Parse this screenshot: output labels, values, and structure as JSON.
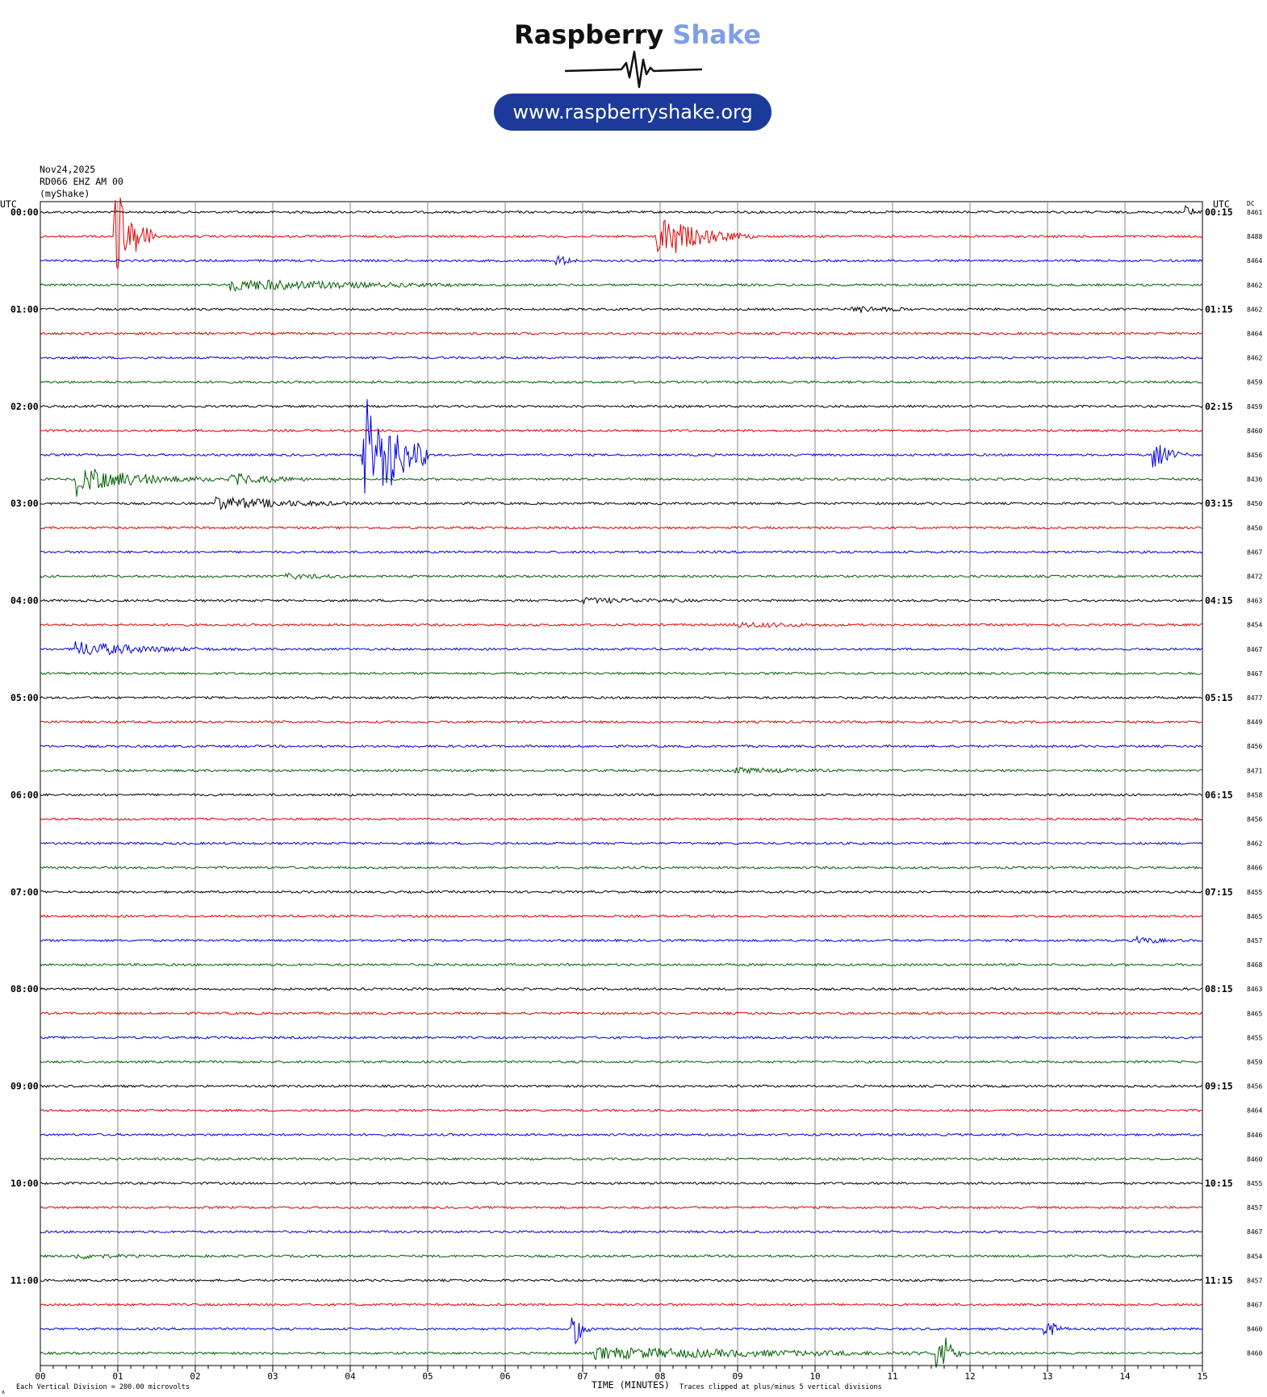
{
  "logo": {
    "brand_main": "Raspberry",
    "brand_accent": "Shake",
    "url": "www.raspberryshake.org",
    "color_brand_dark": "#111111",
    "color_brand_accent": "#7f9ee8",
    "color_url_pill": "#1b3a9a"
  },
  "header": {
    "date": "Nov24,2025",
    "station": "RD066 EHZ AM 00",
    "network": "(myShake)",
    "utc_left": "UTC",
    "utc_right": "UTC",
    "dc_label": "DC"
  },
  "footer": {
    "division_note": "Each Vertical Division =  200.00 microvolts",
    "time_label": "TIME (MINUTES)",
    "clip_note": "Traces clipped at plus/minus 5 vertical divisions",
    "corner_mark": "∧"
  },
  "chart_data": {
    "type": "line",
    "title": "",
    "xlabel": "TIME (MINUTES)",
    "ylabel": "",
    "xlim": [
      0,
      15
    ],
    "x_ticks": [
      "00",
      "01",
      "02",
      "03",
      "04",
      "05",
      "06",
      "07",
      "08",
      "09",
      "10",
      "11",
      "12",
      "13",
      "14",
      "15"
    ],
    "grid": true,
    "trace_colors": [
      "#000000",
      "#e00000",
      "#0000e0",
      "#006000"
    ],
    "rows": [
      {
        "left": "00:00",
        "right": "00:15",
        "dc": "8461",
        "events": [
          {
            "t": 14.8,
            "amp": 10,
            "dur": 0.2
          }
        ]
      },
      {
        "left": "",
        "right": "",
        "dc": "8488",
        "events": [
          {
            "t": 1.0,
            "amp": 55,
            "dur": 0.5
          },
          {
            "t": 8.0,
            "amp": 25,
            "dur": 1.2
          }
        ]
      },
      {
        "left": "",
        "right": "",
        "dc": "8464",
        "events": [
          {
            "t": 6.7,
            "amp": 8,
            "dur": 0.3
          }
        ]
      },
      {
        "left": "",
        "right": "",
        "dc": "8462",
        "events": [
          {
            "t": 2.5,
            "amp": 8,
            "dur": 4.5
          }
        ]
      },
      {
        "left": "01:00",
        "right": "01:15",
        "dc": "8462",
        "events": [
          {
            "t": 10.5,
            "amp": 5,
            "dur": 1.5
          }
        ]
      },
      {
        "left": "",
        "right": "",
        "dc": "8464",
        "events": []
      },
      {
        "left": "",
        "right": "",
        "dc": "8462",
        "events": []
      },
      {
        "left": "",
        "right": "",
        "dc": "8459",
        "events": []
      },
      {
        "left": "02:00",
        "right": "02:15",
        "dc": "8459",
        "events": []
      },
      {
        "left": "",
        "right": "",
        "dc": "8460",
        "events": []
      },
      {
        "left": "",
        "right": "",
        "dc": "8456",
        "events": [
          {
            "t": 4.2,
            "amp": 95,
            "dur": 0.8
          },
          {
            "t": 14.4,
            "amp": 18,
            "dur": 0.4
          }
        ]
      },
      {
        "left": "",
        "right": "",
        "dc": "8436",
        "events": [
          {
            "t": 0.5,
            "amp": 16,
            "dur": 2.0
          },
          {
            "t": 2.5,
            "amp": 8,
            "dur": 1.5
          }
        ]
      },
      {
        "left": "03:00",
        "right": "03:15",
        "dc": "8450",
        "events": [
          {
            "t": 2.3,
            "amp": 9,
            "dur": 2.5
          }
        ]
      },
      {
        "left": "",
        "right": "",
        "dc": "8450",
        "events": []
      },
      {
        "left": "",
        "right": "",
        "dc": "8467",
        "events": []
      },
      {
        "left": "",
        "right": "",
        "dc": "8472",
        "events": [
          {
            "t": 3.2,
            "amp": 4,
            "dur": 2.0
          }
        ]
      },
      {
        "left": "04:00",
        "right": "04:15",
        "dc": "8463",
        "events": [
          {
            "t": 7.0,
            "amp": 4,
            "dur": 4.0
          }
        ]
      },
      {
        "left": "",
        "right": "",
        "dc": "8454",
        "events": [
          {
            "t": 9.0,
            "amp": 4,
            "dur": 3.0
          }
        ]
      },
      {
        "left": "",
        "right": "",
        "dc": "8467",
        "events": [
          {
            "t": 0.5,
            "amp": 10,
            "dur": 2.2
          }
        ]
      },
      {
        "left": "",
        "right": "",
        "dc": "8467",
        "events": []
      },
      {
        "left": "05:00",
        "right": "05:15",
        "dc": "8477",
        "events": []
      },
      {
        "left": "",
        "right": "",
        "dc": "8449",
        "events": []
      },
      {
        "left": "",
        "right": "",
        "dc": "8456",
        "events": []
      },
      {
        "left": "",
        "right": "",
        "dc": "8471",
        "events": [
          {
            "t": 9.0,
            "amp": 4,
            "dur": 3.0
          }
        ]
      },
      {
        "left": "06:00",
        "right": "06:15",
        "dc": "8458",
        "events": []
      },
      {
        "left": "",
        "right": "",
        "dc": "8456",
        "events": []
      },
      {
        "left": "",
        "right": "",
        "dc": "8462",
        "events": []
      },
      {
        "left": "",
        "right": "",
        "dc": "8466",
        "events": []
      },
      {
        "left": "07:00",
        "right": "07:15",
        "dc": "8455",
        "events": []
      },
      {
        "left": "",
        "right": "",
        "dc": "8465",
        "events": []
      },
      {
        "left": "",
        "right": "",
        "dc": "8457",
        "events": [
          {
            "t": 14.2,
            "amp": 5,
            "dur": 0.8
          }
        ]
      },
      {
        "left": "",
        "right": "",
        "dc": "8468",
        "events": []
      },
      {
        "left": "08:00",
        "right": "08:15",
        "dc": "8463",
        "events": []
      },
      {
        "left": "",
        "right": "",
        "dc": "8465",
        "events": []
      },
      {
        "left": "",
        "right": "",
        "dc": "8455",
        "events": []
      },
      {
        "left": "",
        "right": "",
        "dc": "8459",
        "events": []
      },
      {
        "left": "09:00",
        "right": "09:15",
        "dc": "8456",
        "events": []
      },
      {
        "left": "",
        "right": "",
        "dc": "8464",
        "events": []
      },
      {
        "left": "",
        "right": "",
        "dc": "8446",
        "events": []
      },
      {
        "left": "",
        "right": "",
        "dc": "8460",
        "events": []
      },
      {
        "left": "10:00",
        "right": "10:15",
        "dc": "8455",
        "events": []
      },
      {
        "left": "",
        "right": "",
        "dc": "8457",
        "events": []
      },
      {
        "left": "",
        "right": "",
        "dc": "8467",
        "events": []
      },
      {
        "left": "",
        "right": "",
        "dc": "8454",
        "events": [
          {
            "t": 0.5,
            "amp": 4,
            "dur": 2.0
          }
        ]
      },
      {
        "left": "11:00",
        "right": "11:15",
        "dc": "8457",
        "events": []
      },
      {
        "left": "",
        "right": "",
        "dc": "8467",
        "events": []
      },
      {
        "left": "",
        "right": "",
        "dc": "8460",
        "events": [
          {
            "t": 6.9,
            "amp": 20,
            "dur": 0.2
          },
          {
            "t": 13.0,
            "amp": 12,
            "dur": 0.3
          }
        ]
      },
      {
        "left": "",
        "right": "",
        "dc": "8460",
        "events": [
          {
            "t": 7.2,
            "amp": 8,
            "dur": 7.0
          },
          {
            "t": 11.6,
            "amp": 22,
            "dur": 0.3
          }
        ]
      }
    ]
  }
}
